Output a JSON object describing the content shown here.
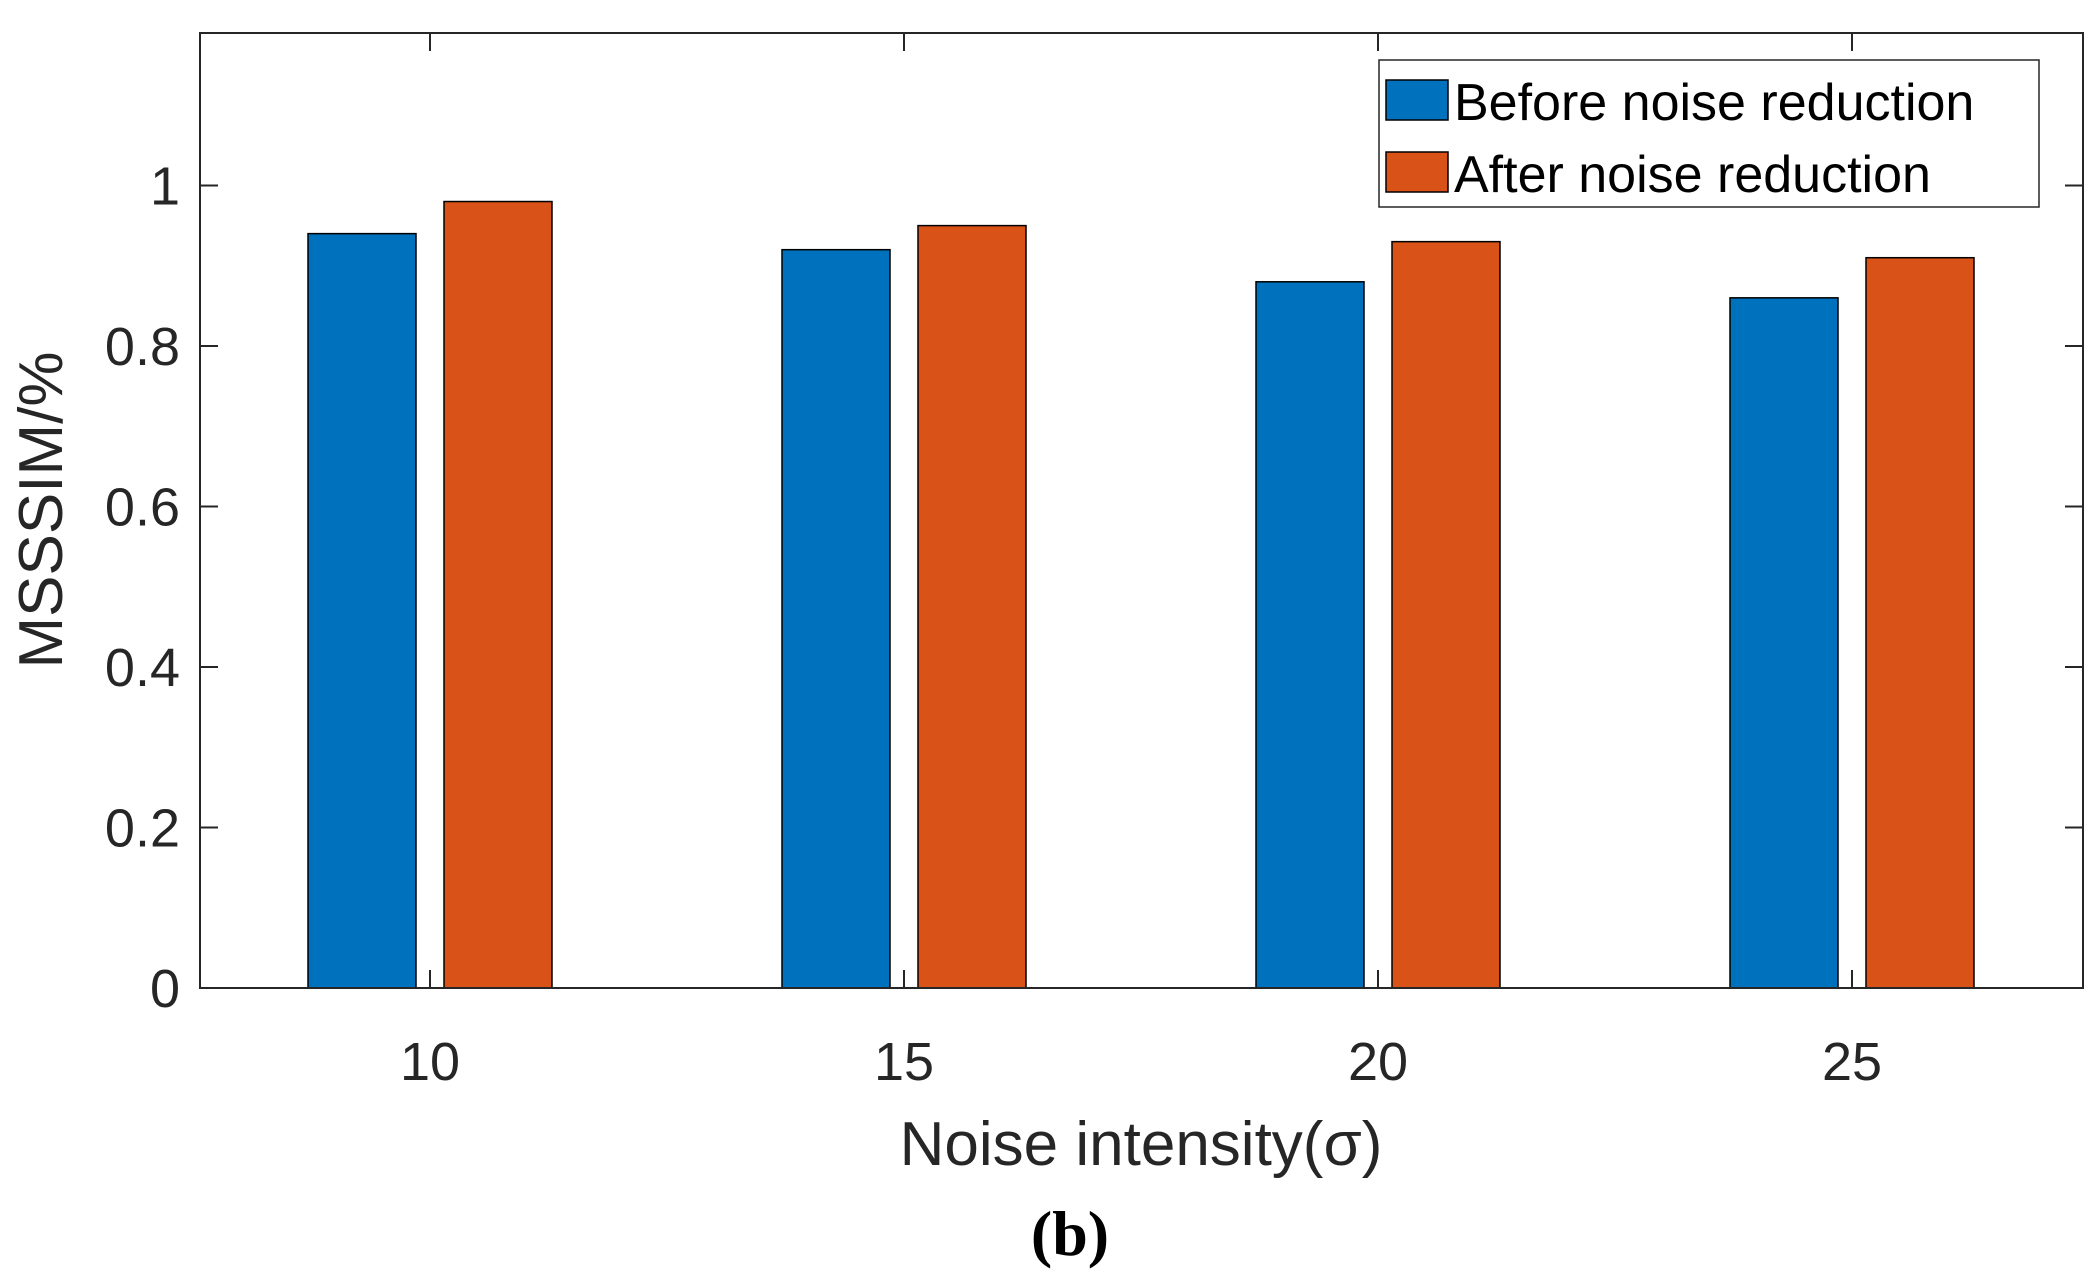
{
  "chart_data": {
    "type": "bar",
    "title": "",
    "caption": "(b)",
    "xlabel": "Noise intensity(σ)",
    "ylabel": "MSSSIM/%",
    "categories": [
      "10",
      "15",
      "20",
      "25"
    ],
    "series": [
      {
        "name": "Before noise reduction",
        "color": "#0072BD",
        "values": [
          0.94,
          0.92,
          0.88,
          0.86
        ]
      },
      {
        "name": "After noise reduction",
        "color": "#D95319",
        "values": [
          0.98,
          0.95,
          0.93,
          0.91
        ]
      }
    ],
    "ylim": [
      0,
      1.19
    ],
    "yticks": [
      "0",
      "0.2",
      "0.4",
      "0.6",
      "0.8",
      "1"
    ],
    "ytick_values": [
      0,
      0.2,
      0.4,
      0.6,
      0.8,
      1
    ],
    "legend": "top-right",
    "grid": false
  }
}
